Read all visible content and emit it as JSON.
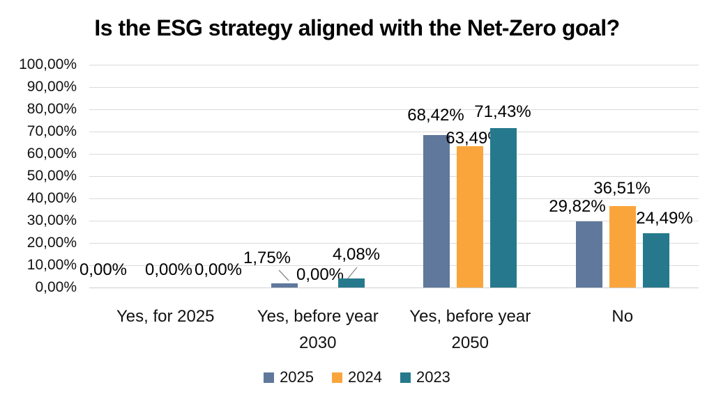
{
  "chart_data": {
    "type": "bar",
    "title": "Is the ESG strategy aligned with the Net-Zero goal?",
    "categories": [
      "Yes, for 2025",
      "Yes, before year 2030",
      "Yes, before year 2050",
      "No"
    ],
    "series": [
      {
        "name": "2025",
        "color": "#60789C",
        "values": [
          0,
          1.75,
          68.42,
          29.82
        ],
        "labels": [
          "0,00%",
          "1,75%",
          "68,42%",
          "29,82%"
        ]
      },
      {
        "name": "2024",
        "color": "#FAA53C",
        "values": [
          0,
          0,
          63.49,
          36.51
        ],
        "labels": [
          "0,00%",
          "0,00%",
          "63,49%",
          "36,51%"
        ]
      },
      {
        "name": "2023",
        "color": "#26798C",
        "values": [
          0,
          4.08,
          71.43,
          24.49
        ],
        "labels": [
          "0,00%",
          "4,08%",
          "71,43%",
          "24,49%"
        ]
      }
    ],
    "xlabel": "",
    "ylabel": "",
    "ylim": [
      0,
      100
    ],
    "ytick_step": 10,
    "ytick_labels": [
      "0,00%",
      "10,00%",
      "20,00%",
      "30,00%",
      "40,00%",
      "50,00%",
      "60,00%",
      "70,00%",
      "80,00%",
      "90,00%",
      "100,00%"
    ],
    "grid": true,
    "legend_position": "bottom",
    "gridline_color": "#DADADA",
    "text_color": "#000000",
    "background_color": "#FFFFFF"
  }
}
